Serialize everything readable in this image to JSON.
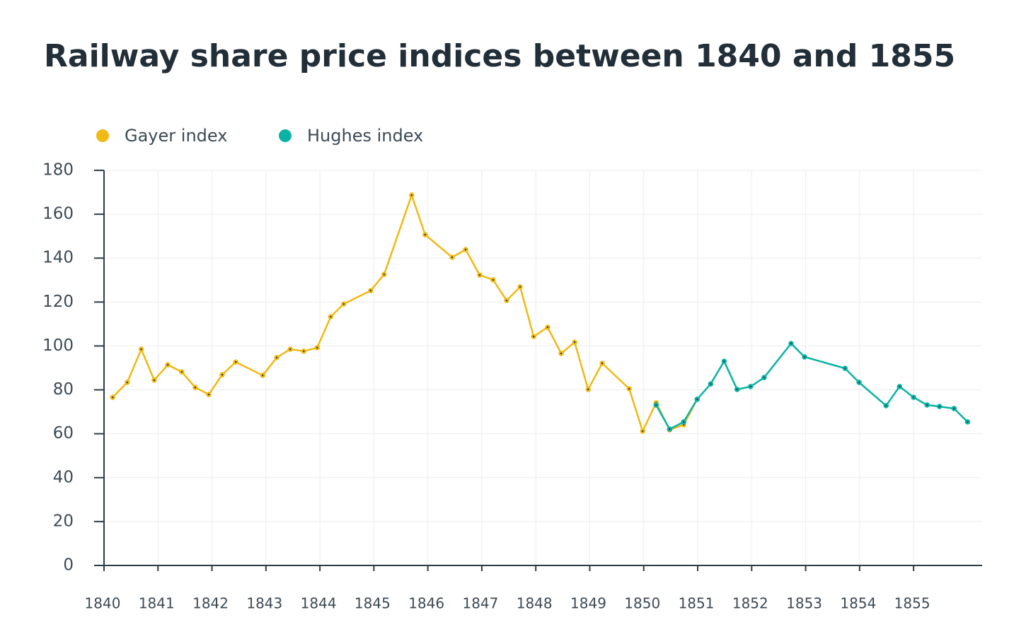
{
  "chart_data": {
    "type": "line",
    "title": "Railway share price indices between 1840 and 1855",
    "series": [
      {
        "name": "Gayer index",
        "color": "#f0b913",
        "x": [
          1840.16,
          1840.43,
          1840.69,
          1840.93,
          1841.18,
          1841.44,
          1841.69,
          1841.94,
          1842.19,
          1842.44,
          1842.94,
          1843.2,
          1843.45,
          1843.7,
          1843.95,
          1844.2,
          1844.44,
          1844.94,
          1845.19,
          1845.7,
          1845.95,
          1846.45,
          1846.7,
          1846.96,
          1847.21,
          1847.46,
          1847.71,
          1847.96,
          1848.22,
          1848.47,
          1848.72,
          1848.97,
          1849.23,
          1849.73,
          1849.98,
          1850.23,
          1850.48,
          1850.74,
          1850.99
        ],
        "values": [
          76.6,
          83.4,
          98.5,
          84.4,
          91.4,
          88.2,
          81.1,
          77.9,
          86.9,
          92.7,
          86.6,
          94.7,
          98.5,
          97.6,
          99.2,
          113.3,
          119.1,
          125.2,
          132.6,
          168.7,
          150.7,
          140.4,
          143.9,
          132.3,
          130.1,
          120.7,
          126.9,
          104.3,
          108.5,
          96.6,
          101.7,
          80.2,
          92.1,
          80.5,
          61.2,
          74.1,
          61.8,
          64.1,
          75.7
        ]
      },
      {
        "name": "Hughes index",
        "color": "#0ab3a4",
        "x": [
          1850.23,
          1850.48,
          1850.74,
          1850.99,
          1851.24,
          1851.49,
          1851.73,
          1851.98,
          1852.23,
          1852.73,
          1852.98,
          1853.73,
          1853.99,
          1854.49,
          1854.74,
          1855.0,
          1855.25,
          1855.48,
          1855.75,
          1856.0
        ],
        "values": [
          73.1,
          62.1,
          65.4,
          75.7,
          82.7,
          93.0,
          80.2,
          81.5,
          85.6,
          101.1,
          95.0,
          89.8,
          83.4,
          72.8,
          81.5,
          76.6,
          73.1,
          72.4,
          71.5,
          65.4
        ]
      }
    ],
    "xlim": [
      1840,
      1856.27
    ],
    "xticks": [
      1840,
      1841,
      1842,
      1843,
      1844,
      1845,
      1846,
      1847,
      1848,
      1849,
      1850,
      1851,
      1852,
      1853,
      1854,
      1855
    ],
    "ylim": [
      0,
      180
    ],
    "yticks": [
      0,
      20,
      40,
      60,
      80,
      100,
      120,
      140,
      160,
      180
    ],
    "grid": true
  }
}
